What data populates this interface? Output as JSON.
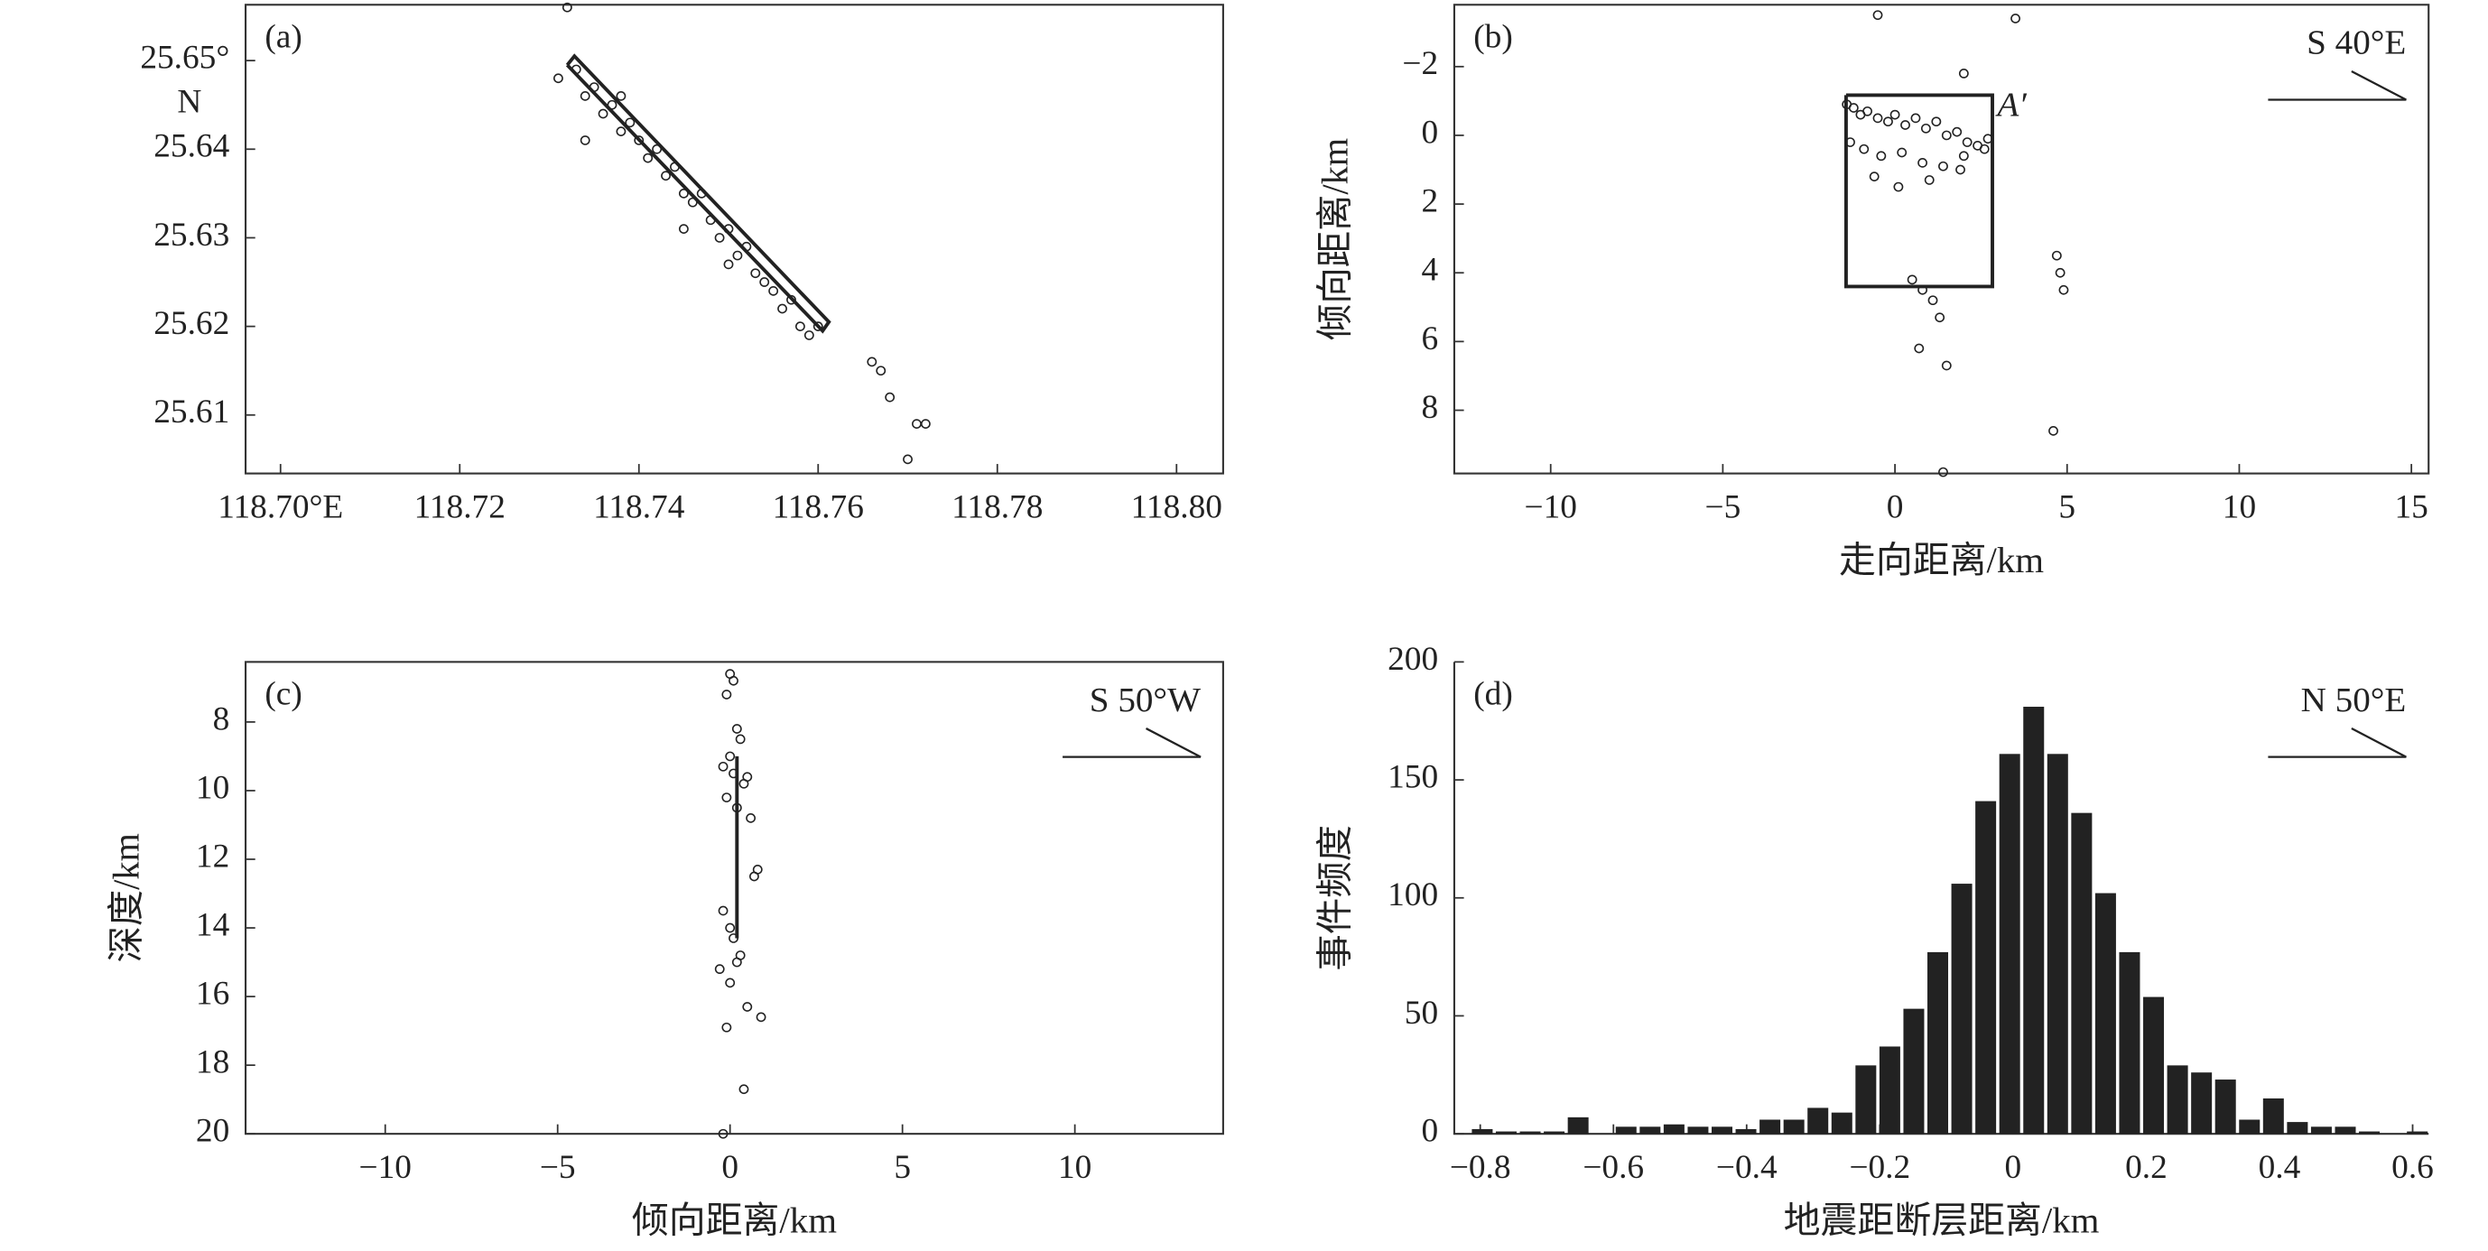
{
  "chart_data": [
    {
      "type": "scatter",
      "label": "(a)",
      "ylabel": "N",
      "xlim": [
        118.6961,
        118.8052
      ],
      "ylim": [
        25.6034,
        25.6563
      ],
      "xticks": [
        {
          "value": 118.7,
          "label": "118.70°E"
        },
        118.72,
        118.74,
        118.76,
        118.78,
        {
          "value": 118.8,
          "label": "118.80"
        }
      ],
      "yticks": [
        {
          "value": 25.65,
          "label": "25.65°"
        },
        25.64,
        25.63,
        25.62,
        25.61
      ],
      "points": {
        "x": [
          118.731,
          118.733,
          118.734,
          118.735,
          118.736,
          118.737,
          118.738,
          118.739,
          118.74,
          118.741,
          118.742,
          118.743,
          118.744,
          118.745,
          118.746,
          118.747,
          118.748,
          118.749,
          118.75,
          118.751,
          118.752,
          118.753,
          118.754,
          118.755,
          118.756,
          118.757,
          118.758,
          118.759,
          118.76,
          118.766,
          118.767,
          118.768,
          118.77,
          118.771,
          118.772,
          118.734,
          118.738,
          118.745,
          118.75,
          118.732
        ],
        "y": [
          25.648,
          25.649,
          25.646,
          25.647,
          25.644,
          25.645,
          25.642,
          25.643,
          25.641,
          25.639,
          25.64,
          25.637,
          25.638,
          25.635,
          25.634,
          25.635,
          25.632,
          25.63,
          25.631,
          25.628,
          25.629,
          25.626,
          25.625,
          25.624,
          25.622,
          25.623,
          25.62,
          25.619,
          25.62,
          25.616,
          25.615,
          25.612,
          25.605,
          25.609,
          25.609,
          25.641,
          25.646,
          25.631,
          25.627,
          25.656
        ]
      },
      "outline": {
        "x": [
          118.732,
          118.7605,
          118.7612,
          118.7328,
          118.732
        ],
        "y": [
          25.6495,
          25.6195,
          25.6205,
          25.6505,
          25.6495
        ]
      }
    },
    {
      "type": "scatter",
      "label": "(b)",
      "direction": "S 40°E",
      "annotation": "A′",
      "xlabel": "走向距离/km",
      "ylabel": "倾向距离/km",
      "y_inverted": true,
      "xlim": [
        -12.8,
        15.5
      ],
      "ylim": [
        -3.8,
        9.84
      ],
      "xticks": [
        {
          "value": -10,
          "label": "−10"
        },
        {
          "value": -5,
          "label": "−5"
        },
        0,
        5,
        10,
        15
      ],
      "yticks": [
        {
          "value": -2,
          "label": "−2"
        },
        0,
        2,
        4,
        6,
        8
      ],
      "points": {
        "x": [
          -1.4,
          -1.2,
          -1.0,
          -0.8,
          -0.5,
          -0.2,
          0,
          0.3,
          0.6,
          0.9,
          1.2,
          1.5,
          1.8,
          2.1,
          2.4,
          2.7,
          -1.3,
          -0.9,
          -0.4,
          0.2,
          0.8,
          1.4,
          2.0,
          2.6,
          -0.6,
          0.1,
          1.0,
          1.9,
          0.5,
          0.8,
          1.1,
          1.3,
          0.7,
          1.5,
          4.7,
          4.8,
          4.9,
          3.5,
          4.6,
          -0.5,
          2.0,
          1.4
        ],
        "y": [
          -0.9,
          -0.8,
          -0.6,
          -0.7,
          -0.5,
          -0.4,
          -0.6,
          -0.3,
          -0.5,
          -0.2,
          -0.4,
          0,
          -0.1,
          0.2,
          0.3,
          0.1,
          0.2,
          0.4,
          0.6,
          0.5,
          0.8,
          0.9,
          0.6,
          0.4,
          1.2,
          1.5,
          1.3,
          1.0,
          4.2,
          4.5,
          4.8,
          5.3,
          6.2,
          6.7,
          3.5,
          4.0,
          4.5,
          -3.4,
          8.6,
          -3.5,
          -1.8,
          9.8
        ]
      },
      "outline": {
        "x": [
          -1.42,
          2.83,
          2.83,
          -1.42,
          -1.42
        ],
        "y": [
          -1.17,
          -1.17,
          4.4,
          4.4,
          -1.17
        ]
      }
    },
    {
      "type": "scatter",
      "label": "(c)",
      "direction": "S 50°W",
      "xlabel": "倾向距离/km",
      "ylabel": "深度/km",
      "y_inverted": true,
      "xlim": [
        -14.05,
        14.3
      ],
      "ylim": [
        6.25,
        20
      ],
      "xticks": [
        {
          "value": -10,
          "label": "−10"
        },
        {
          "value": -5,
          "label": "−5"
        },
        0,
        5,
        10
      ],
      "yticks": [
        8,
        10,
        12,
        14,
        16,
        18,
        20
      ],
      "points": {
        "x": [
          0,
          0.1,
          -0.1,
          0.2,
          0.3,
          0,
          -0.2,
          0.1,
          0.4,
          0.5,
          -0.1,
          0.2,
          0.6,
          0.8,
          0.7,
          -0.2,
          0,
          0.1,
          0.3,
          -0.3,
          0,
          0.2,
          0.5,
          -0.1,
          0.4,
          0.9,
          -0.2
        ],
        "y": [
          6.6,
          6.8,
          7.2,
          8.2,
          8.5,
          9.0,
          9.3,
          9.5,
          9.8,
          9.6,
          10.2,
          10.5,
          10.8,
          12.3,
          12.5,
          13.5,
          14.0,
          14.3,
          14.8,
          15.2,
          15.6,
          15.0,
          16.3,
          16.9,
          18.7,
          16.6,
          20.0
        ]
      },
      "outline": {
        "x": [
          0.2,
          0.2
        ],
        "y": [
          9,
          14.3
        ]
      }
    },
    {
      "type": "histogram",
      "label": "(d)",
      "direction": "N 50°E",
      "xlabel": "地震距断层距离/km",
      "ylabel": "事件频度",
      "color": "#222222",
      "xlim": [
        -0.839,
        0.624
      ],
      "ylim": [
        0,
        200
      ],
      "xticks": [
        {
          "value": -0.8,
          "label": "−0.8"
        },
        {
          "value": -0.6,
          "label": "−0.6"
        },
        {
          "value": -0.4,
          "label": "−0.4"
        },
        {
          "value": -0.2,
          "label": "−0.2"
        },
        0,
        0.2,
        0.4,
        0.6
      ],
      "yticks": [
        0,
        50,
        100,
        150,
        200
      ],
      "bins": [
        -0.815,
        -0.779,
        -0.743,
        -0.707,
        -0.671,
        -0.635,
        -0.599,
        -0.563,
        -0.527,
        -0.491,
        -0.455,
        -0.419,
        -0.383,
        -0.347,
        -0.311,
        -0.275,
        -0.239,
        -0.203,
        -0.167,
        -0.131,
        -0.095,
        -0.059,
        -0.023,
        0.013,
        0.049,
        0.085,
        0.121,
        0.157,
        0.193,
        0.229,
        0.265,
        0.301,
        0.337,
        0.373,
        0.409,
        0.445,
        0.481,
        0.517,
        0.553,
        0.589,
        0.625
      ],
      "values": [
        2,
        1,
        1,
        1,
        7,
        0,
        3,
        3,
        4,
        3,
        3,
        2,
        6,
        6,
        11,
        9,
        29,
        37,
        53,
        77,
        106,
        141,
        161,
        181,
        161,
        136,
        102,
        77,
        58,
        29,
        26,
        23,
        6,
        15,
        5,
        3,
        3,
        1,
        0,
        1
      ]
    }
  ]
}
